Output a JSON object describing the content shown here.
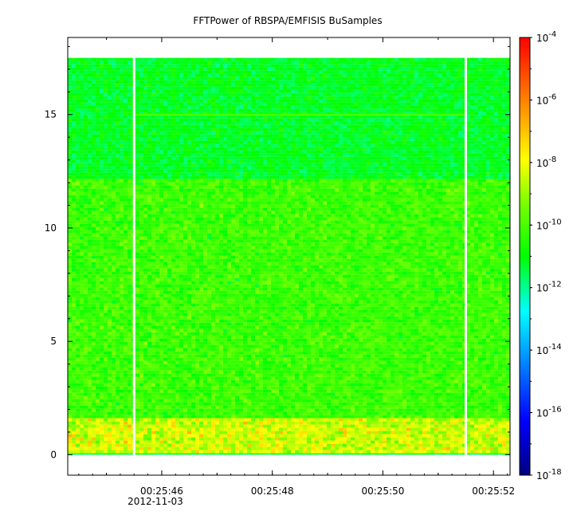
{
  "chart_data": {
    "type": "heatmap",
    "title": "FFTPower of RBSPA/EMFISIS  BuSamples",
    "x": {
      "label": "",
      "range": [
        "00:25:44.3",
        "00:25:52.3"
      ],
      "ticks": [
        {
          "value": "00:25:46",
          "label": "00:25:46",
          "sublabel": "2012-11-03"
        },
        {
          "value": "00:25:48",
          "label": "00:25:48"
        },
        {
          "value": "00:25:50",
          "label": "00:25:50"
        },
        {
          "value": "00:25:52",
          "label": "00:25:52"
        }
      ]
    },
    "y": {
      "label": "",
      "range": [
        -0.9,
        18.4
      ],
      "ticks": [
        0,
        5,
        10,
        15
      ]
    },
    "colorbar": {
      "scale": "log",
      "range": [
        1e-18,
        0.0001
      ],
      "ticks": [
        {
          "value": 0.0001,
          "base": "10",
          "exp": "-4"
        },
        {
          "value": 1e-06,
          "base": "10",
          "exp": "-6"
        },
        {
          "value": 1e-08,
          "base": "10",
          "exp": "-8"
        },
        {
          "value": 1e-10,
          "base": "10",
          "exp": "-10"
        },
        {
          "value": 1e-12,
          "base": "10",
          "exp": "-12"
        },
        {
          "value": 1e-14,
          "base": "10",
          "exp": "-14"
        },
        {
          "value": 1e-16,
          "base": "10",
          "exp": "-16"
        },
        {
          "value": 1e-18,
          "base": "10",
          "exp": "-18"
        }
      ],
      "colormap": "rainbow"
    },
    "data_extent": {
      "y": [
        0,
        17.5
      ]
    },
    "gaps_x": [
      "00:25:45.5",
      "00:25:51.5"
    ],
    "line_y": 15,
    "bands": [
      {
        "y_from": 0,
        "y_to": 1.6,
        "log_power_mean": -8.4,
        "log_power_spread": 0.9
      },
      {
        "y_from": 1.6,
        "y_to": 12.2,
        "log_power_mean": -10.2,
        "log_power_spread": 0.6
      },
      {
        "y_from": 12.2,
        "y_to": 17.5,
        "log_power_mean": -11.2,
        "log_power_spread": 0.45
      }
    ],
    "grid": false,
    "legend": "colorbar-right"
  }
}
